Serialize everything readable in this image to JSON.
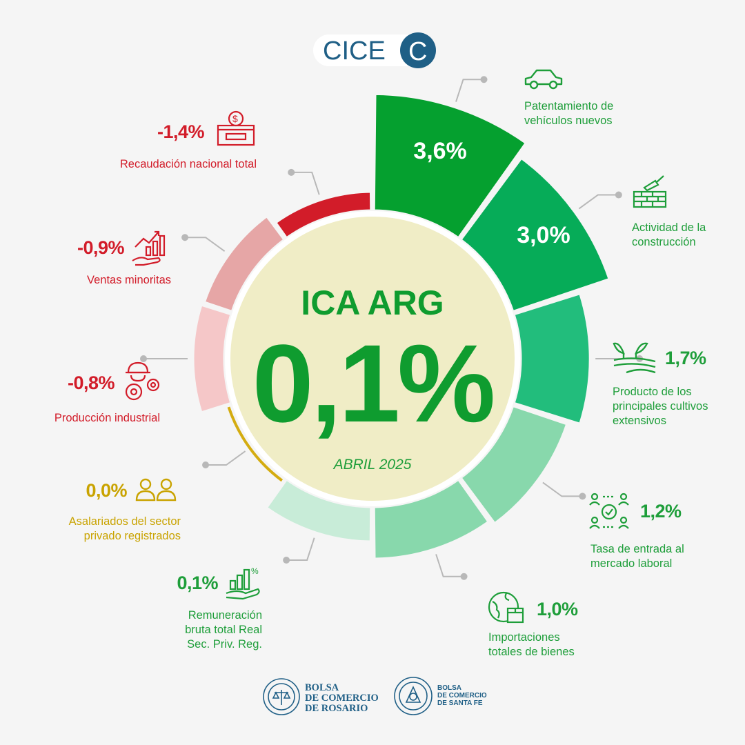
{
  "brand": {
    "logo_text": "CICE",
    "logo_mark": "C",
    "accent": "#1f5f86"
  },
  "center": {
    "title": "ICA ARG",
    "value": "0,1%",
    "period": "ABRIL 2025"
  },
  "chart_data": {
    "type": "pie",
    "title": "ICA ARG",
    "subtitle": "ABRIL 2025",
    "total_label": "0,1%",
    "series": [
      {
        "name": "Patentamiento de vehículos nuevos",
        "value": 3.6,
        "label": "3,6%",
        "color": "#05a02f",
        "icon": "car-icon"
      },
      {
        "name": "Actividad de la construcción",
        "value": 3.0,
        "label": "3,0%",
        "color": "#06ac58",
        "icon": "bricks-trowel-icon"
      },
      {
        "name": "Producto de los principales cultivos extensivos",
        "value": 1.7,
        "label": "1,7%",
        "color": "#22bd7c",
        "icon": "crop-field-icon"
      },
      {
        "name": "Tasa de entrada al mercado laboral",
        "value": 1.2,
        "label": "1,2%",
        "color": "#88d8ac",
        "icon": "people-network-icon"
      },
      {
        "name": "Importaciones totales de bienes",
        "value": 1.0,
        "label": "1,0%",
        "color": "#88d8ac",
        "icon": "globe-box-icon"
      },
      {
        "name": "Remuneración bruta total Real Sec. Priv. Reg.",
        "value": 0.1,
        "label": "0,1%",
        "color": "#c8ecd8",
        "icon": "hand-growth-percent-icon"
      },
      {
        "name": "Asalariados del sector privado registrados",
        "value": 0.0,
        "label": "0,0%",
        "color": "#d4ac10",
        "icon": "two-people-icon"
      },
      {
        "name": "Producción industrial",
        "value": -0.8,
        "label": "-0,8%",
        "color": "#f5c7c8",
        "icon": "worker-gears-icon"
      },
      {
        "name": "Ventas minoritas",
        "value": -0.9,
        "label": "-0,9%",
        "color": "#e6a6a6",
        "icon": "hand-growth-chart-icon"
      },
      {
        "name": "Recaudación nacional total",
        "value": -1.4,
        "label": "-1,4%",
        "color": "#d21c29",
        "icon": "cash-register-icon"
      }
    ]
  },
  "labels": {
    "patentamiento": {
      "line1": "Patentamiento de",
      "line2": "vehículos nuevos"
    },
    "construccion": {
      "line1": "Actividad de la",
      "line2": "construcción"
    },
    "cultivos": {
      "pct": "1,7%",
      "line1": "Producto de los",
      "line2": "principales cultivos",
      "line3": "extensivos"
    },
    "laboral": {
      "pct": "1,2%",
      "line1": "Tasa de entrada al",
      "line2": "mercado laboral"
    },
    "importaciones": {
      "pct": "1,0%",
      "line1": "Importaciones",
      "line2": "totales de bienes"
    },
    "remuneracion": {
      "pct": "0,1%",
      "line1": "Remuneración",
      "line2": "bruta total Real",
      "line3": "Sec. Priv. Reg."
    },
    "asalariados": {
      "pct": "0,0%",
      "line1": "Asalariados del sector",
      "line2": "privado registrados"
    },
    "industrial": {
      "pct": "-0,8%",
      "line1": "Producción industrial"
    },
    "minoristas": {
      "pct": "-0,9%",
      "line1": "Ventas minoritas"
    },
    "recaudacion": {
      "pct": "-1,4%",
      "line1": "Recaudación nacional total"
    }
  },
  "footer": {
    "org1": {
      "line1": "BOLSA",
      "line2": "DE COMERCIO",
      "line3": "DE ROSARIO"
    },
    "org2": {
      "line1": "BOLSA",
      "line2": "DE COMERCIO",
      "line3": "DE SANTA FE"
    }
  }
}
